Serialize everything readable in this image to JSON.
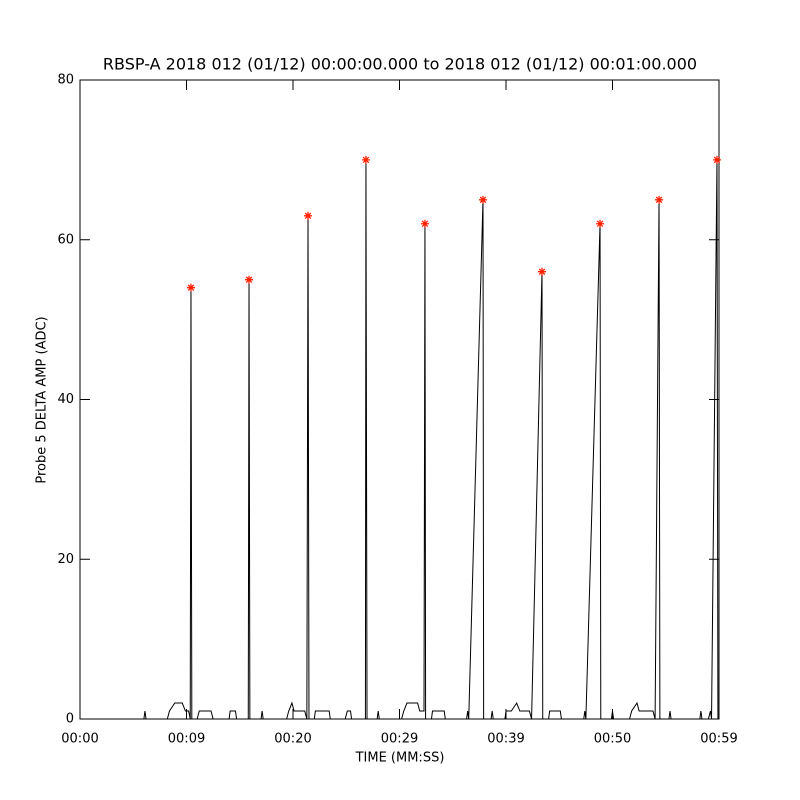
{
  "chart_data": {
    "type": "line",
    "title": "RBSP-A 2018 012 (01/12) 00:00:00.000 to 2018 012 (01/12) 00:01:00.000",
    "x_label": "TIME (MM:SS)",
    "y_label": "Probe 5 DELTA AMP (ADC)",
    "xlim": [
      0,
      60
    ],
    "ylim": [
      0,
      80
    ],
    "xticks": [
      {
        "value": 0,
        "label": "00:00"
      },
      {
        "value": 10,
        "label": "00:09"
      },
      {
        "value": 20,
        "label": "00:20"
      },
      {
        "value": 30,
        "label": "00:29"
      },
      {
        "value": 40,
        "label": "00:39"
      },
      {
        "value": 50,
        "label": "00:50"
      },
      {
        "value": 60,
        "label": "00:59"
      }
    ],
    "yticks": [
      0,
      20,
      40,
      60,
      80
    ],
    "grid": false,
    "series": [
      {
        "color": "#000000",
        "marker": "none",
        "line": true,
        "x": [
          0,
          6.0,
          6.1,
          6.2,
          8.2,
          8.4,
          8.9,
          9.6,
          9.9,
          10.2,
          10.35,
          10.42,
          10.5,
          11.0,
          11.2,
          12.3,
          12.5,
          14.0,
          14.1,
          14.6,
          14.7,
          15.8,
          15.87,
          15.95,
          17.0,
          17.1,
          17.2,
          19.4,
          19.6,
          19.9,
          20.1,
          21.1,
          21.3,
          21.41,
          21.5,
          22.0,
          22.1,
          23.4,
          23.5,
          24.9,
          25.1,
          25.4,
          25.5,
          26.8,
          26.85,
          26.95,
          27.9,
          28.0,
          28.1,
          30.2,
          30.4,
          30.7,
          31.7,
          31.9,
          32.3,
          32.39,
          32.45,
          33.0,
          33.1,
          34.2,
          34.3,
          36.3,
          36.4,
          36.5,
          37.84,
          37.9,
          38.6,
          38.7,
          38.8,
          39.9,
          40.0,
          40.5,
          41.0,
          41.3,
          42.2,
          42.4,
          43.38,
          43.45,
          44.0,
          44.1,
          45.1,
          45.2,
          47.3,
          47.4,
          47.5,
          48.83,
          48.9,
          49.9,
          50.0,
          50.1,
          51.6,
          51.8,
          52.3,
          52.5,
          53.8,
          54.0,
          54.37,
          54.45,
          55.3,
          55.4,
          55.5,
          58.2,
          58.3,
          58.4,
          59.0,
          59.2,
          59.3,
          59.81,
          59.9,
          60
        ],
        "values": [
          0,
          0,
          1,
          0,
          0,
          1,
          2,
          2,
          1,
          1,
          0,
          54,
          0,
          0,
          1,
          1,
          0,
          0,
          1,
          1,
          0,
          0,
          55,
          0,
          0,
          1,
          0,
          0,
          1,
          2,
          1,
          1,
          0,
          63,
          0,
          0,
          1,
          1,
          0,
          0,
          1,
          1,
          0,
          0,
          70,
          0,
          0,
          1,
          0,
          0,
          1,
          2,
          2,
          1,
          1,
          62,
          0,
          0,
          1,
          1,
          0,
          0,
          1,
          0,
          65,
          0,
          0,
          1,
          0,
          0,
          1,
          1,
          2,
          1,
          1,
          0,
          56,
          0,
          0,
          1,
          1,
          0,
          0,
          1,
          0,
          62,
          0,
          0,
          1,
          0,
          0,
          1,
          2,
          1,
          1,
          0,
          65,
          0,
          0,
          1,
          0,
          0,
          1,
          0,
          0,
          1,
          0,
          70,
          0,
          0
        ]
      },
      {
        "color": "#ff2000",
        "marker": "asterisk",
        "line": false,
        "x": [
          10.42,
          15.87,
          21.41,
          26.85,
          32.39,
          37.84,
          43.38,
          48.83,
          54.37,
          59.81
        ],
        "values": [
          54,
          55,
          63,
          70,
          62,
          65,
          56,
          62,
          65,
          70
        ]
      }
    ]
  }
}
